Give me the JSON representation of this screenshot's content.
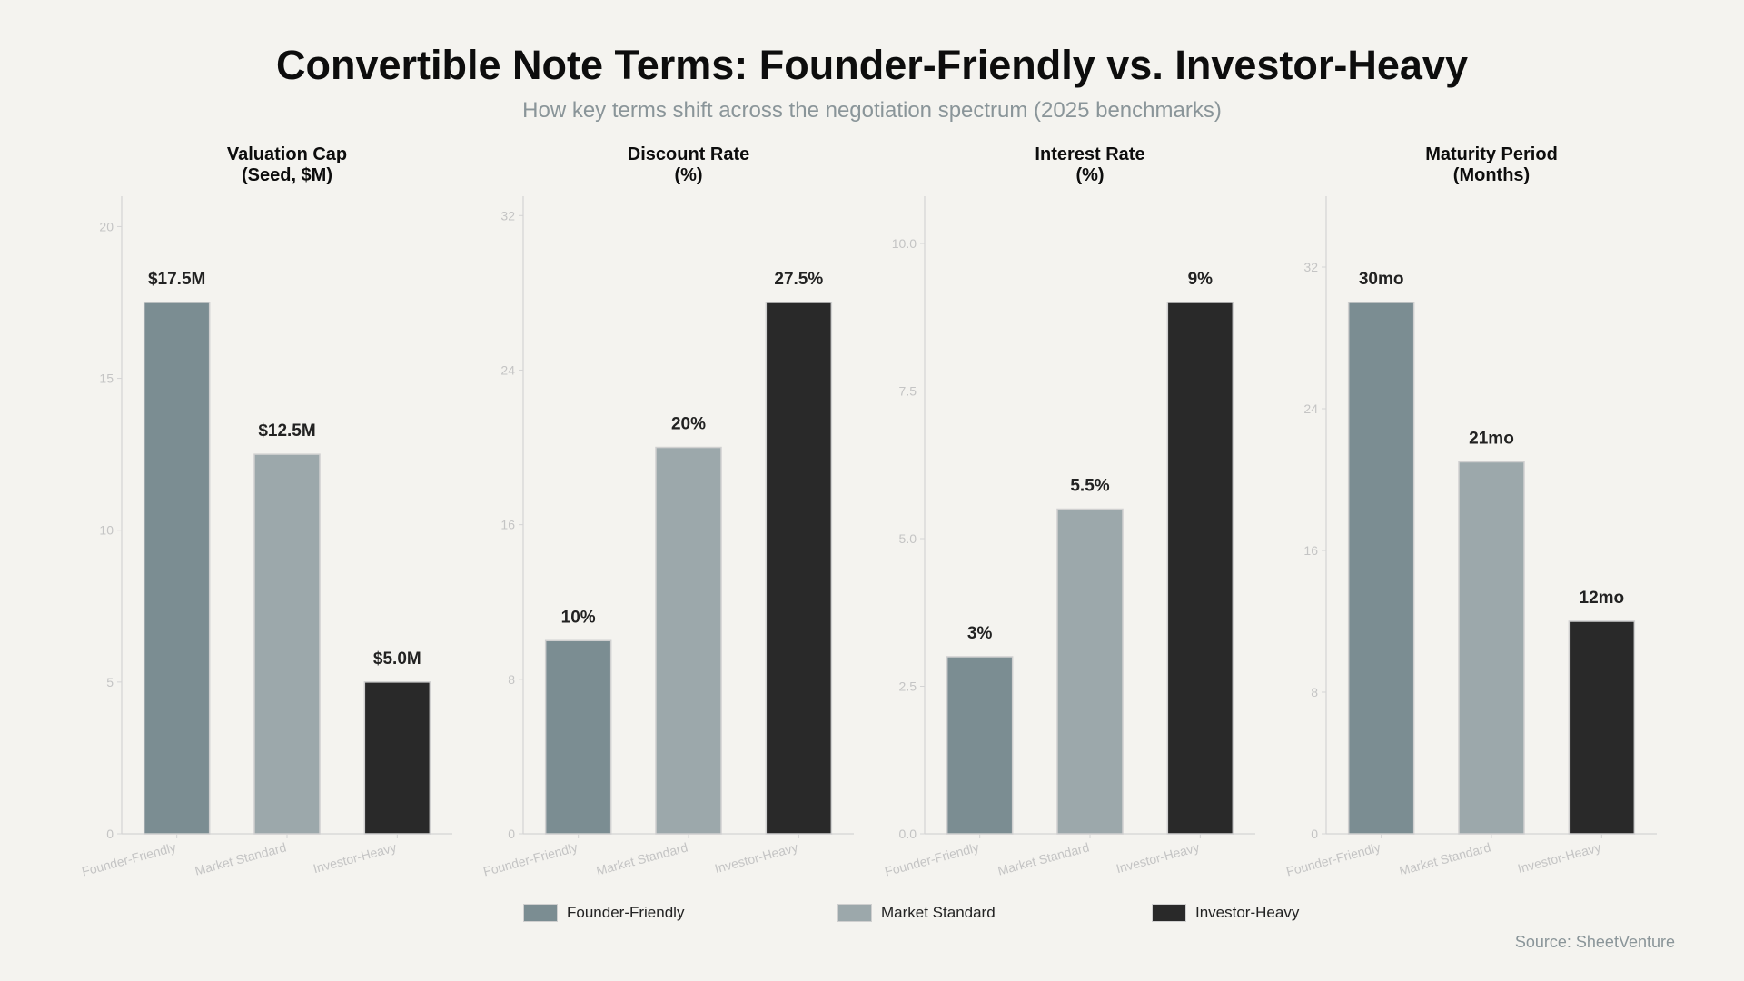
{
  "title": "Convertible Note Terms: Founder-Friendly vs. Investor-Heavy",
  "subtitle": "How key terms shift across the negotiation spectrum (2025 benchmarks)",
  "source": "Source: SheetVenture",
  "colors": {
    "founder_friendly": "#7b8d92",
    "market_standard": "#9ca8ab",
    "investor_heavy": "#292929"
  },
  "legend": [
    {
      "label": "Founder-Friendly",
      "color": "#7b8d92"
    },
    {
      "label": "Market Standard",
      "color": "#9ca8ab"
    },
    {
      "label": "Investor-Heavy",
      "color": "#292929"
    }
  ],
  "chart_data": [
    {
      "type": "bar",
      "title_lines": [
        "Valuation Cap",
        "(Seed, $M)"
      ],
      "categories": [
        "Founder-Friendly",
        "Market Standard",
        "Investor-Heavy"
      ],
      "values": [
        17.5,
        12.5,
        5.0
      ],
      "data_labels": [
        "$17.5M",
        "$12.5M",
        "$5.0M"
      ],
      "ylim": [
        0,
        21
      ],
      "yticks": [
        0,
        5,
        10,
        15,
        20
      ],
      "ytick_labels": [
        "0",
        "5",
        "10",
        "15",
        "20"
      ]
    },
    {
      "type": "bar",
      "title_lines": [
        "Discount Rate",
        "(%)"
      ],
      "categories": [
        "Founder-Friendly",
        "Market Standard",
        "Investor-Heavy"
      ],
      "values": [
        10,
        20,
        27.5
      ],
      "data_labels": [
        "10%",
        "20%",
        "27.5%"
      ],
      "ylim": [
        0,
        33
      ],
      "yticks": [
        0,
        8,
        16,
        24,
        32
      ],
      "ytick_labels": [
        "0",
        "8",
        "16",
        "24",
        "32"
      ]
    },
    {
      "type": "bar",
      "title_lines": [
        "Interest Rate",
        "(%)"
      ],
      "categories": [
        "Founder-Friendly",
        "Market Standard",
        "Investor-Heavy"
      ],
      "values": [
        3,
        5.5,
        9
      ],
      "data_labels": [
        "3%",
        "5.5%",
        "9%"
      ],
      "ylim": [
        0,
        10.8
      ],
      "yticks": [
        0,
        2.5,
        5,
        7.5,
        10
      ],
      "ytick_labels": [
        "0.0",
        "2.5",
        "5.0",
        "7.5",
        "10.0"
      ]
    },
    {
      "type": "bar",
      "title_lines": [
        "Maturity Period",
        "(Months)"
      ],
      "categories": [
        "Founder-Friendly",
        "Market Standard",
        "Investor-Heavy"
      ],
      "values": [
        30,
        21,
        12
      ],
      "data_labels": [
        "30mo",
        "21mo",
        "12mo"
      ],
      "ylim": [
        0,
        36
      ],
      "yticks": [
        0,
        8,
        16,
        24,
        32
      ],
      "ytick_labels": [
        "0",
        "8",
        "16",
        "24",
        "32"
      ]
    }
  ]
}
